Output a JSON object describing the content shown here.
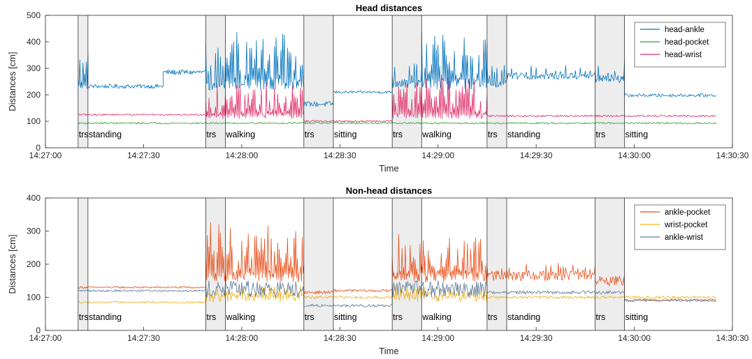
{
  "chart_data": [
    {
      "type": "line",
      "title": "Head distances",
      "xlabel": "Time",
      "ylabel": "Distances [cm]",
      "xlim": [
        "14:27:00",
        "14:30:30"
      ],
      "ylim": [
        0,
        500
      ],
      "x_ticks": [
        "14:27:00",
        "14:27:30",
        "14:28:00",
        "14:28:30",
        "14:29:00",
        "14:29:30",
        "14:30:00",
        "14:30:30"
      ],
      "y_ticks": [
        0,
        100,
        200,
        300,
        400,
        500
      ],
      "legend_position": "top-right",
      "grid": false,
      "activities": [
        {
          "label": "trs",
          "start": "14:27:10",
          "end": "14:27:13",
          "shaded": true
        },
        {
          "label": "standing",
          "start": "14:27:13",
          "end": "14:27:49",
          "shaded": false
        },
        {
          "label": "trs",
          "start": "14:27:49",
          "end": "14:27:55",
          "shaded": true
        },
        {
          "label": "walking",
          "start": "14:27:55",
          "end": "14:28:19",
          "shaded": false
        },
        {
          "label": "trs",
          "start": "14:28:19",
          "end": "14:28:28",
          "shaded": true
        },
        {
          "label": "sitting",
          "start": "14:28:28",
          "end": "14:28:46",
          "shaded": false
        },
        {
          "label": "trs",
          "start": "14:28:46",
          "end": "14:28:55",
          "shaded": true
        },
        {
          "label": "walking",
          "start": "14:28:55",
          "end": "14:29:15",
          "shaded": false
        },
        {
          "label": "trs",
          "start": "14:29:15",
          "end": "14:29:21",
          "shaded": true
        },
        {
          "label": "standing",
          "start": "14:29:21",
          "end": "14:29:48",
          "shaded": false
        },
        {
          "label": "trs",
          "start": "14:29:48",
          "end": "14:29:57",
          "shaded": true
        },
        {
          "label": "sitting",
          "start": "14:29:57",
          "end": "14:30:25",
          "shaded": false
        }
      ],
      "series": [
        {
          "name": "head-ankle",
          "color": "#0072BD",
          "segments": [
            {
              "start": "14:27:10",
              "end": "14:27:13",
              "base": 230,
              "noise": 8,
              "spike_every": 2,
              "spike": 130
            },
            {
              "start": "14:27:13",
              "end": "14:27:36",
              "base": 232,
              "noise": 8,
              "spike_every": 0,
              "spike": 0
            },
            {
              "start": "14:27:36",
              "end": "14:27:49",
              "base": 285,
              "noise": 10,
              "spike_every": 0,
              "spike": 0
            },
            {
              "start": "14:27:49",
              "end": "14:27:55",
              "base": 230,
              "noise": 15,
              "spike_every": 3,
              "spike": 160
            },
            {
              "start": "14:27:55",
              "end": "14:28:19",
              "base": 240,
              "noise": 20,
              "spike_every": 2,
              "spike": 190
            },
            {
              "start": "14:28:19",
              "end": "14:28:28",
              "base": 165,
              "noise": 10,
              "spike_every": 0,
              "spike": 0
            },
            {
              "start": "14:28:28",
              "end": "14:28:46",
              "base": 210,
              "noise": 5,
              "spike_every": 0,
              "spike": 0
            },
            {
              "start": "14:28:46",
              "end": "14:28:55",
              "base": 240,
              "noise": 15,
              "spike_every": 3,
              "spike": 80
            },
            {
              "start": "14:28:55",
              "end": "14:29:15",
              "base": 240,
              "noise": 20,
              "spike_every": 2,
              "spike": 190
            },
            {
              "start": "14:29:15",
              "end": "14:29:21",
              "base": 240,
              "noise": 12,
              "spike_every": 3,
              "spike": 80
            },
            {
              "start": "14:29:21",
              "end": "14:29:48",
              "base": 270,
              "noise": 12,
              "spike_every": 6,
              "spike": 40
            },
            {
              "start": "14:29:48",
              "end": "14:29:57",
              "base": 260,
              "noise": 15,
              "spike_every": 4,
              "spike": 60
            },
            {
              "start": "14:29:57",
              "end": "14:30:25",
              "base": 198,
              "noise": 6,
              "spike_every": 0,
              "spike": 0
            }
          ]
        },
        {
          "name": "head-pocket",
          "color": "#2CA02C",
          "segments": [
            {
              "start": "14:27:10",
              "end": "14:30:25",
              "base": 93,
              "noise": 3,
              "spike_every": 0,
              "spike": 0
            }
          ]
        },
        {
          "name": "head-wrist",
          "color": "#E0306A",
          "segments": [
            {
              "start": "14:27:10",
              "end": "14:27:49",
              "base": 125,
              "noise": 3,
              "spike_every": 0,
              "spike": 0
            },
            {
              "start": "14:27:49",
              "end": "14:28:19",
              "base": 120,
              "noise": 10,
              "spike_every": 2,
              "spike": 120
            },
            {
              "start": "14:28:19",
              "end": "14:28:46",
              "base": 100,
              "noise": 4,
              "spike_every": 0,
              "spike": 0
            },
            {
              "start": "14:28:46",
              "end": "14:29:15",
              "base": 120,
              "noise": 10,
              "spike_every": 2,
              "spike": 150
            },
            {
              "start": "14:29:15",
              "end": "14:30:25",
              "base": 120,
              "noise": 4,
              "spike_every": 0,
              "spike": 0
            }
          ]
        }
      ]
    },
    {
      "type": "line",
      "title": "Non-head distances",
      "xlabel": "Time",
      "ylabel": "Distances [cm]",
      "xlim": [
        "14:27:00",
        "14:30:30"
      ],
      "ylim": [
        0,
        400
      ],
      "x_ticks": [
        "14:27:00",
        "14:27:30",
        "14:28:00",
        "14:28:30",
        "14:29:00",
        "14:29:30",
        "14:30:00",
        "14:30:30"
      ],
      "y_ticks": [
        0,
        100,
        200,
        300,
        400
      ],
      "legend_position": "top-right",
      "grid": false,
      "activities": [
        {
          "label": "trs",
          "start": "14:27:10",
          "end": "14:27:13",
          "shaded": true
        },
        {
          "label": "standing",
          "start": "14:27:13",
          "end": "14:27:49",
          "shaded": false
        },
        {
          "label": "trs",
          "start": "14:27:49",
          "end": "14:27:55",
          "shaded": true
        },
        {
          "label": "walking",
          "start": "14:27:55",
          "end": "14:28:19",
          "shaded": false
        },
        {
          "label": "trs",
          "start": "14:28:19",
          "end": "14:28:28",
          "shaded": true
        },
        {
          "label": "sitting",
          "start": "14:28:28",
          "end": "14:28:46",
          "shaded": false
        },
        {
          "label": "trs",
          "start": "14:28:46",
          "end": "14:28:55",
          "shaded": true
        },
        {
          "label": "walking",
          "start": "14:28:55",
          "end": "14:29:15",
          "shaded": false
        },
        {
          "label": "trs",
          "start": "14:29:15",
          "end": "14:29:21",
          "shaded": true
        },
        {
          "label": "standing",
          "start": "14:29:21",
          "end": "14:29:48",
          "shaded": false
        },
        {
          "label": "trs",
          "start": "14:29:48",
          "end": "14:29:57",
          "shaded": true
        },
        {
          "label": "sitting",
          "start": "14:29:57",
          "end": "14:30:25",
          "shaded": false
        }
      ],
      "series": [
        {
          "name": "ankle-pocket",
          "color": "#E8501A",
          "segments": [
            {
              "start": "14:27:10",
              "end": "14:27:49",
              "base": 130,
              "noise": 3,
              "spike_every": 0,
              "spike": 0
            },
            {
              "start": "14:27:49",
              "end": "14:28:19",
              "base": 160,
              "noise": 15,
              "spike_every": 2,
              "spike": 160
            },
            {
              "start": "14:28:19",
              "end": "14:28:28",
              "base": 115,
              "noise": 5,
              "spike_every": 0,
              "spike": 0
            },
            {
              "start": "14:28:28",
              "end": "14:28:46",
              "base": 120,
              "noise": 4,
              "spike_every": 0,
              "spike": 0
            },
            {
              "start": "14:28:46",
              "end": "14:29:15",
              "base": 160,
              "noise": 15,
              "spike_every": 2,
              "spike": 120
            },
            {
              "start": "14:29:15",
              "end": "14:29:48",
              "base": 165,
              "noise": 15,
              "spike_every": 3,
              "spike": 30
            },
            {
              "start": "14:29:48",
              "end": "14:29:57",
              "base": 150,
              "noise": 15,
              "spike_every": 0,
              "spike": 0
            },
            {
              "start": "14:29:57",
              "end": "14:30:25",
              "base": 92,
              "noise": 3,
              "spike_every": 0,
              "spike": 0
            }
          ]
        },
        {
          "name": "wrist-pocket",
          "color": "#EDB120",
          "segments": [
            {
              "start": "14:27:10",
              "end": "14:27:49",
              "base": 85,
              "noise": 3,
              "spike_every": 0,
              "spike": 0
            },
            {
              "start": "14:27:49",
              "end": "14:28:19",
              "base": 100,
              "noise": 15,
              "spike_every": 2,
              "spike": 30
            },
            {
              "start": "14:28:19",
              "end": "14:28:46",
              "base": 100,
              "noise": 4,
              "spike_every": 0,
              "spike": 0
            },
            {
              "start": "14:28:46",
              "end": "14:29:15",
              "base": 100,
              "noise": 15,
              "spike_every": 2,
              "spike": 30
            },
            {
              "start": "14:29:15",
              "end": "14:30:25",
              "base": 100,
              "noise": 4,
              "spike_every": 0,
              "spike": 0
            }
          ]
        },
        {
          "name": "ankle-wrist",
          "color": "#5A7A95",
          "segments": [
            {
              "start": "14:27:10",
              "end": "14:27:49",
              "base": 120,
              "noise": 3,
              "spike_every": 0,
              "spike": 0
            },
            {
              "start": "14:27:49",
              "end": "14:28:19",
              "base": 125,
              "noise": 25,
              "spike_every": 0,
              "spike": 0
            },
            {
              "start": "14:28:19",
              "end": "14:28:46",
              "base": 75,
              "noise": 4,
              "spike_every": 0,
              "spike": 0
            },
            {
              "start": "14:28:46",
              "end": "14:29:15",
              "base": 125,
              "noise": 25,
              "spike_every": 0,
              "spike": 0
            },
            {
              "start": "14:29:15",
              "end": "14:29:57",
              "base": 115,
              "noise": 5,
              "spike_every": 0,
              "spike": 0
            },
            {
              "start": "14:29:57",
              "end": "14:30:25",
              "base": 90,
              "noise": 3,
              "spike_every": 0,
              "spike": 0
            }
          ]
        }
      ]
    }
  ]
}
